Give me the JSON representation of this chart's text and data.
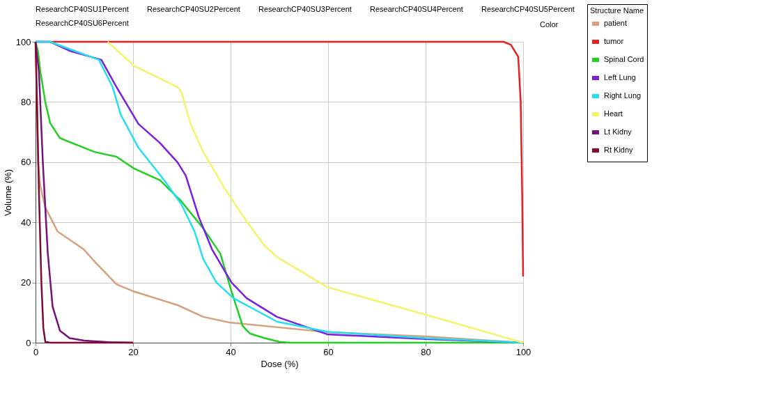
{
  "chart_data": {
    "type": "line",
    "xlabel": "Dose (%)",
    "ylabel": "Volume (%)",
    "legend_title": "Structure Name",
    "annotations": [
      "ResearchCP40SU1Percent",
      "ResearchCP40SU2Percent",
      "ResearchCP40SU3Percent",
      "ResearchCP40SU4Percent",
      "ResearchCP40SU5Percent",
      "ResearchCP40SU6Percent",
      "Color"
    ],
    "xlim": [
      0,
      100
    ],
    "ylim": [
      0,
      100
    ],
    "xticks": [
      0,
      20,
      40,
      60,
      80,
      100
    ],
    "yticks": [
      0,
      20,
      40,
      60,
      80,
      100
    ],
    "grid": true,
    "legend": "top right",
    "line_style": "solid",
    "marker": "none",
    "series": [
      {
        "name": "patient",
        "color": "#d8a07c",
        "x": [
          0,
          0.3,
          0.5,
          1,
          2,
          4.5,
          9.9,
          12.1,
          16.6,
          20.2,
          29.1,
          34.4,
          39.8,
          59.8,
          80,
          100
        ],
        "values": [
          100,
          80,
          60,
          52,
          45,
          37,
          31,
          27,
          19.4,
          17,
          12.5,
          8.6,
          6.7,
          3.5,
          2.1,
          0
        ]
      },
      {
        "name": "tumor",
        "color": "#e82020",
        "x": [
          0,
          96,
          97.5,
          99,
          99.5,
          99.8,
          100
        ],
        "values": [
          100,
          100,
          99,
          95,
          80,
          50,
          22
        ]
      },
      {
        "name": "Spinal Cord",
        "color": "#22d022",
        "x": [
          0,
          0.5,
          1,
          2,
          3,
          5,
          12.1,
          16.6,
          20.2,
          25.5,
          29.9,
          34.4,
          37.9,
          40.2,
          42.5,
          44,
          47,
          50,
          52,
          100
        ],
        "values": [
          100,
          97,
          90,
          80,
          73,
          68,
          63.4,
          61.8,
          57.9,
          54,
          47,
          38,
          29.6,
          17,
          5.5,
          3,
          1.5,
          0.3,
          0,
          0
        ]
      },
      {
        "name": "Left Lung",
        "color": "#7a1ee6",
        "x": [
          0,
          3,
          7,
          13.5,
          16.6,
          21.1,
          25.5,
          29.1,
          30.8,
          33.5,
          36.2,
          40.2,
          43.3,
          49.5,
          59.8,
          80,
          100
        ],
        "values": [
          100,
          100,
          97,
          94,
          85,
          72.7,
          66.4,
          60,
          55.6,
          41.7,
          31,
          20,
          14.8,
          8.6,
          2.8,
          1.2,
          0
        ]
      },
      {
        "name": "Right Lung",
        "color": "#22e0f0",
        "x": [
          0,
          3,
          8,
          13,
          15.8,
          17.5,
          21.1,
          26.4,
          29.9,
          32.6,
          34.4,
          37.1,
          40.6,
          49.5,
          60,
          80,
          100
        ],
        "values": [
          100,
          100,
          97,
          94,
          85,
          75.7,
          64.8,
          54,
          46,
          37,
          27.8,
          20,
          14.8,
          7,
          3.6,
          1.5,
          0
        ]
      },
      {
        "name": "Heart",
        "color": "#f4f46a",
        "x": [
          14.8,
          20.2,
          29.1,
          29.9,
          31.8,
          34.4,
          38.9,
          43.3,
          46.9,
          49.5,
          59.8,
          80,
          100
        ],
        "values": [
          100,
          92,
          85,
          83.3,
          72.7,
          63.4,
          51,
          40.3,
          32.4,
          28.5,
          18.5,
          9.3,
          0
        ]
      },
      {
        "name": "Lt Kidny",
        "color": "#76107a",
        "x": [
          0,
          0.7,
          1.5,
          2.5,
          3.5,
          5,
          7,
          10,
          15,
          20
        ],
        "values": [
          100,
          90,
          60,
          30,
          12,
          4,
          1.5,
          0.7,
          0.2,
          0
        ]
      },
      {
        "name": "Rt Kidny",
        "color": "#800b30",
        "x": [
          0,
          0.3,
          0.7,
          1.2,
          1.6,
          2,
          3,
          20
        ],
        "values": [
          100,
          80,
          50,
          20,
          5,
          0.3,
          0,
          0
        ]
      }
    ]
  }
}
